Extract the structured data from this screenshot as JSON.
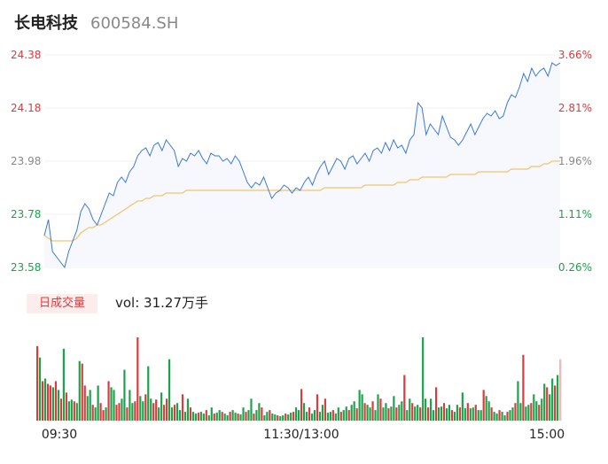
{
  "header": {
    "name": "长电科技",
    "code": "600584.SH"
  },
  "colors": {
    "up": "#e0383b",
    "down": "#1aa34a",
    "price_line": "#3a78d6",
    "avg_line": "#f3c46b",
    "area_fill": "#f6f8fd"
  },
  "price_axis": {
    "left_ticks": [
      "24.38",
      "24.18",
      "23.98",
      "23.78",
      "23.58"
    ],
    "right_ticks": [
      "3.66%",
      "2.81%",
      "1.96%",
      "1.11%",
      "0.26%"
    ],
    "tick_colors": [
      "#e0383b",
      "#e0383b",
      "#888888",
      "#1aa34a",
      "#1aa34a"
    ]
  },
  "volume": {
    "tag": "日成交量",
    "text": "vol: 31.27万手"
  },
  "time_axis": [
    "09:30",
    "11:30/13:00",
    "15:00"
  ],
  "chart_data": [
    {
      "type": "line",
      "title": "",
      "ylim": [
        23.58,
        24.38
      ],
      "series": [
        {
          "role": "price",
          "values": [
            23.7,
            23.76,
            23.64,
            23.62,
            23.6,
            23.58,
            23.64,
            23.68,
            23.72,
            23.79,
            23.82,
            23.8,
            23.76,
            23.74,
            23.78,
            23.82,
            23.86,
            23.85,
            23.9,
            23.92,
            23.9,
            23.94,
            23.96,
            24.0,
            24.02,
            24.03,
            24.0,
            24.04,
            24.05,
            24.02,
            24.06,
            24.04,
            24.02,
            23.96,
            23.99,
            23.98,
            24.01,
            24.0,
            24.02,
            23.99,
            23.97,
            24.01,
            24.0,
            24.0,
            23.98,
            23.99,
            23.97,
            24.0,
            23.98,
            23.94,
            23.9,
            23.88,
            23.9,
            23.89,
            23.92,
            23.88,
            23.84,
            23.86,
            23.87,
            23.89,
            23.88,
            23.86,
            23.88,
            23.87,
            23.9,
            23.92,
            23.89,
            23.93,
            23.96,
            23.98,
            23.93,
            23.96,
            23.99,
            23.98,
            23.95,
            23.99,
            24.0,
            23.97,
            23.99,
            24.01,
            23.98,
            24.02,
            24.03,
            24.01,
            24.05,
            24.02,
            24.06,
            24.03,
            24.04,
            24.01,
            24.06,
            24.08,
            24.2,
            24.18,
            24.08,
            24.12,
            24.1,
            24.08,
            24.15,
            24.11,
            24.07,
            24.06,
            24.04,
            24.06,
            24.09,
            24.12,
            24.08,
            24.11,
            24.14,
            24.16,
            24.15,
            24.17,
            24.14,
            24.15,
            24.2,
            24.23,
            24.22,
            24.26,
            24.31,
            24.28,
            24.33,
            24.3,
            24.32,
            24.33,
            24.3,
            24.35,
            24.34,
            24.35
          ]
        },
        {
          "role": "average",
          "values": [
            23.7,
            23.69,
            23.68,
            23.68,
            23.68,
            23.68,
            23.68,
            23.68,
            23.69,
            23.71,
            23.72,
            23.73,
            23.73,
            23.74,
            23.74,
            23.75,
            23.76,
            23.77,
            23.78,
            23.79,
            23.8,
            23.81,
            23.82,
            23.83,
            23.83,
            23.84,
            23.84,
            23.85,
            23.85,
            23.85,
            23.86,
            23.86,
            23.86,
            23.86,
            23.86,
            23.87,
            23.87,
            23.87,
            23.87,
            23.87,
            23.87,
            23.87,
            23.87,
            23.87,
            23.87,
            23.87,
            23.87,
            23.87,
            23.87,
            23.87,
            23.87,
            23.87,
            23.87,
            23.87,
            23.87,
            23.87,
            23.87,
            23.87,
            23.87,
            23.87,
            23.87,
            23.87,
            23.87,
            23.87,
            23.87,
            23.87,
            23.87,
            23.87,
            23.87,
            23.88,
            23.88,
            23.88,
            23.88,
            23.88,
            23.88,
            23.88,
            23.88,
            23.88,
            23.88,
            23.89,
            23.89,
            23.89,
            23.89,
            23.89,
            23.89,
            23.89,
            23.89,
            23.9,
            23.9,
            23.9,
            23.91,
            23.91,
            23.91,
            23.92,
            23.92,
            23.92,
            23.92,
            23.92,
            23.92,
            23.92,
            23.93,
            23.93,
            23.93,
            23.93,
            23.93,
            23.93,
            23.93,
            23.94,
            23.94,
            23.94,
            23.94,
            23.94,
            23.94,
            23.94,
            23.94,
            23.95,
            23.95,
            23.95,
            23.95,
            23.95,
            23.96,
            23.96,
            23.96,
            23.97,
            23.97,
            23.98,
            23.98,
            23.98
          ]
        }
      ]
    },
    {
      "type": "bar",
      "title": "",
      "ylim": [
        0,
        100
      ],
      "values": [
        85,
        72,
        45,
        48,
        42,
        40,
        38,
        45,
        35,
        25,
        82,
        32,
        22,
        24,
        22,
        20,
        68,
        65,
        40,
        28,
        35,
        18,
        15,
        40,
        20,
        12,
        15,
        45,
        38,
        35,
        18,
        20,
        25,
        58,
        15,
        35,
        20,
        22,
        95,
        28,
        22,
        30,
        62,
        25,
        20,
        24,
        15,
        32,
        18,
        25,
        70,
        15,
        18,
        20,
        12,
        30,
        10,
        25,
        15,
        10,
        8,
        9,
        10,
        8,
        12,
        6,
        15,
        8,
        9,
        12,
        10,
        8,
        6,
        10,
        12,
        9,
        8,
        7,
        15,
        10,
        12,
        25,
        8,
        12,
        20,
        15,
        6,
        10,
        12,
        8,
        7,
        6,
        5,
        6,
        8,
        7,
        9,
        10,
        15,
        12,
        36,
        20,
        10,
        15,
        8,
        12,
        30,
        10,
        18,
        25,
        9,
        10,
        12,
        8,
        15,
        10,
        12,
        16,
        12,
        18,
        22,
        14,
        35,
        30,
        20,
        18,
        15,
        22,
        12,
        30,
        25,
        15,
        20,
        14,
        16,
        28,
        15,
        18,
        22,
        52,
        12,
        25,
        20,
        16,
        18,
        15,
        95,
        25,
        15,
        25,
        12,
        38,
        15,
        16,
        20,
        14,
        18,
        12,
        10,
        18,
        15,
        32,
        14,
        20,
        14,
        15,
        18,
        12,
        12,
        35,
        28,
        22,
        15,
        10,
        8,
        12,
        10,
        6,
        10,
        12,
        15,
        20,
        45,
        20,
        75,
        16,
        18,
        20,
        30,
        22,
        18,
        25,
        42,
        38,
        30,
        48,
        40,
        52,
        70
      ],
      "directions": "ududuududududdudduuddudduududduuddudduuddudduudduudduddudduddudduddudduddudduddudduddudduddudduddudduddudduddudduddudduddudduddudduddudduddudduddudduddudduddudduddudduddudduddudduddudduddudduddudduddudduddudduddudduddudduu"
    }
  ]
}
